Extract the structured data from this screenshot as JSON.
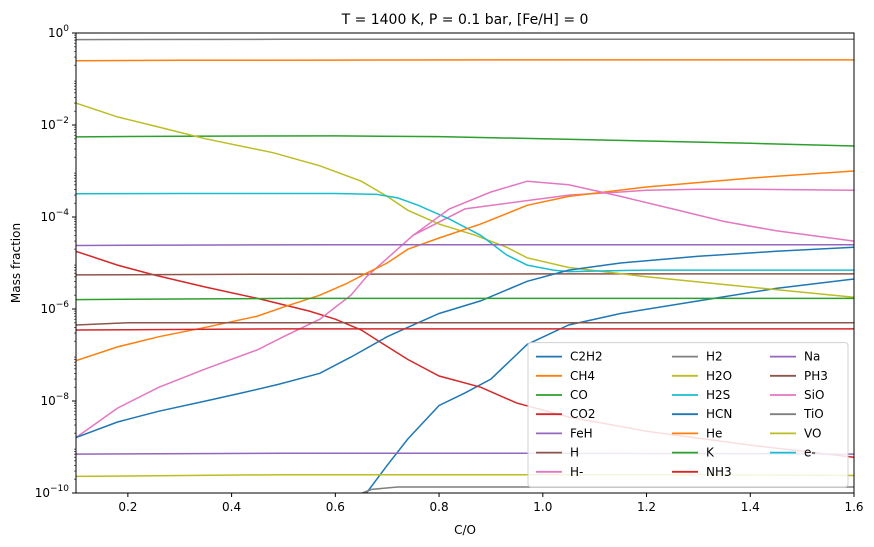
{
  "chart_data": {
    "type": "line",
    "title": "T = 1400 K, P = 0.1 bar, [Fe/H] = 0",
    "xlabel": "C/O",
    "ylabel": "Mass fraction",
    "xlim": [
      0.1,
      1.6
    ],
    "ylim": [
      1e-10,
      1
    ],
    "yscale": "log",
    "grid": false,
    "legend_placement": "lower-right",
    "legend_columns": 3,
    "x_ticks": [
      {
        "value": 0.2,
        "label": "0.2"
      },
      {
        "value": 0.4,
        "label": "0.4"
      },
      {
        "value": 0.6,
        "label": "0.6"
      },
      {
        "value": 0.8,
        "label": "0.8"
      },
      {
        "value": 1.0,
        "label": "1.0"
      },
      {
        "value": 1.2,
        "label": "1.2"
      },
      {
        "value": 1.4,
        "label": "1.4"
      },
      {
        "value": 1.6,
        "label": "1.6"
      }
    ],
    "y_ticks": [
      {
        "value": 1e-10,
        "base": "10",
        "exp": "−10"
      },
      {
        "value": 1e-08,
        "base": "10",
        "exp": "−8"
      },
      {
        "value": 1e-06,
        "base": "10",
        "exp": "−6"
      },
      {
        "value": 0.0001,
        "base": "10",
        "exp": "−4"
      },
      {
        "value": 0.01,
        "base": "10",
        "exp": "−2"
      },
      {
        "value": 1,
        "base": "10",
        "exp": "0"
      }
    ],
    "series": [
      {
        "name": "C2H2",
        "color": "#1f77b4",
        "points": [
          [
            0.6,
            6e-11
          ],
          [
            0.66,
            1e-10
          ],
          [
            0.7,
            4e-10
          ],
          [
            0.74,
            1.5e-09
          ],
          [
            0.8,
            8e-09
          ],
          [
            0.85,
            1.5e-08
          ],
          [
            0.9,
            3e-08
          ],
          [
            0.97,
            1.7e-07
          ],
          [
            1.05,
            4.5e-07
          ],
          [
            1.15,
            8e-07
          ],
          [
            1.3,
            1.5e-06
          ],
          [
            1.45,
            2.8e-06
          ],
          [
            1.6,
            4.5e-06
          ]
        ]
      },
      {
        "name": "CH4",
        "color": "#ff7f0e",
        "points": [
          [
            0.1,
            0.25
          ],
          [
            0.3,
            0.255
          ],
          [
            0.6,
            0.258
          ],
          [
            0.9,
            0.26
          ],
          [
            1.2,
            0.26
          ],
          [
            1.6,
            0.26
          ]
        ]
      },
      {
        "name": "CO",
        "color": "#2ca02c",
        "points": [
          [
            0.1,
            0.0055
          ],
          [
            0.3,
            0.0057
          ],
          [
            0.6,
            0.0058
          ],
          [
            0.8,
            0.0056
          ],
          [
            1.0,
            0.005
          ],
          [
            1.2,
            0.0045
          ],
          [
            1.4,
            0.004
          ],
          [
            1.6,
            0.0035
          ]
        ]
      },
      {
        "name": "CO2",
        "color": "#d62728",
        "points": [
          [
            0.1,
            1.8e-05
          ],
          [
            0.18,
            9e-06
          ],
          [
            0.25,
            5.5e-06
          ],
          [
            0.35,
            3e-06
          ],
          [
            0.45,
            1.7e-06
          ],
          [
            0.55,
            9e-07
          ],
          [
            0.6,
            6e-07
          ],
          [
            0.65,
            3.5e-07
          ],
          [
            0.69,
            1.8e-07
          ],
          [
            0.74,
            8e-08
          ],
          [
            0.8,
            3.5e-08
          ],
          [
            0.88,
            2e-08
          ],
          [
            0.95,
            9e-09
          ],
          [
            1.05,
            4.5e-09
          ],
          [
            1.2,
            2.2e-09
          ],
          [
            1.4,
            1.1e-09
          ],
          [
            1.6,
            6e-10
          ]
        ]
      },
      {
        "name": "FeH",
        "color": "#9467bd",
        "points": [
          [
            0.1,
            7e-10
          ],
          [
            0.5,
            7.3e-10
          ],
          [
            1.0,
            7.3e-10
          ],
          [
            1.3,
            7.2e-10
          ],
          [
            1.6,
            7e-10
          ]
        ]
      },
      {
        "name": "H",
        "color": "#8c564b",
        "points": [
          [
            0.1,
            5.5e-06
          ],
          [
            0.5,
            5.7e-06
          ],
          [
            1.0,
            5.8e-06
          ],
          [
            1.6,
            5.8e-06
          ]
        ]
      },
      {
        "name": "H-",
        "color": "#e377c2",
        "points": [
          [
            0.1,
            1.6e-09
          ],
          [
            0.18,
            7e-09
          ],
          [
            0.26,
            2e-08
          ],
          [
            0.35,
            5e-08
          ],
          [
            0.45,
            1.3e-07
          ],
          [
            0.5,
            2.5e-07
          ],
          [
            0.57,
            6e-07
          ],
          [
            0.63,
            2e-06
          ],
          [
            0.66,
            5e-06
          ],
          [
            0.75,
            4e-05
          ],
          [
            0.85,
            0.00015
          ],
          [
            1.05,
            0.0003
          ],
          [
            1.15,
            0.00035
          ],
          [
            1.2,
            0.00038
          ],
          [
            1.3,
            0.0004
          ],
          [
            1.4,
            0.0004
          ],
          [
            1.5,
            0.00039
          ],
          [
            1.6,
            0.00038
          ]
        ]
      },
      {
        "name": "H2",
        "color": "#7f7f7f",
        "points": [
          [
            0.1,
            0.72
          ],
          [
            0.5,
            0.73
          ],
          [
            1.0,
            0.73
          ],
          [
            1.6,
            0.73
          ]
        ]
      },
      {
        "name": "H2O",
        "color": "#bcbd22",
        "points": [
          [
            0.1,
            0.03
          ],
          [
            0.18,
            0.015
          ],
          [
            0.26,
            0.009
          ],
          [
            0.35,
            0.005
          ],
          [
            0.48,
            0.0025
          ],
          [
            0.57,
            0.0013
          ],
          [
            0.65,
            0.0006
          ],
          [
            0.7,
            0.00028
          ],
          [
            0.74,
            0.00014
          ],
          [
            0.8,
            7e-05
          ],
          [
            0.87,
            4e-05
          ],
          [
            0.93,
            2.2e-05
          ],
          [
            0.97,
            1.3e-05
          ],
          [
            1.05,
            8e-06
          ],
          [
            1.2,
            5e-06
          ],
          [
            1.4,
            3e-06
          ],
          [
            1.6,
            1.8e-06
          ]
        ]
      },
      {
        "name": "H2S",
        "color": "#17becf",
        "points": [
          [
            0.1,
            0.00032
          ],
          [
            0.3,
            0.000325
          ],
          [
            0.6,
            0.000325
          ],
          [
            0.68,
            0.00031
          ],
          [
            0.72,
            0.00026
          ],
          [
            0.76,
            0.00018
          ],
          [
            0.82,
            9e-05
          ],
          [
            0.88,
            4e-05
          ],
          [
            0.93,
            1.5e-05
          ],
          [
            0.97,
            9e-06
          ],
          [
            1.02,
            7e-06
          ],
          [
            1.05,
            6.5e-06
          ],
          [
            1.2,
            7e-06
          ],
          [
            1.4,
            7e-06
          ],
          [
            1.6,
            7e-06
          ]
        ]
      },
      {
        "name": "HCN",
        "color": "#1f77b4",
        "points": [
          [
            0.1,
            1.6e-09
          ],
          [
            0.18,
            3.5e-09
          ],
          [
            0.26,
            6e-09
          ],
          [
            0.35,
            1e-08
          ],
          [
            0.42,
            1.5e-08
          ],
          [
            0.49,
            2.3e-08
          ],
          [
            0.57,
            4e-08
          ],
          [
            0.63,
            9e-08
          ],
          [
            0.7,
            2.5e-07
          ],
          [
            0.74,
            4e-07
          ],
          [
            0.8,
            8e-07
          ],
          [
            0.88,
            1.5e-06
          ],
          [
            0.97,
            4e-06
          ],
          [
            1.05,
            7e-06
          ],
          [
            1.15,
            1e-05
          ],
          [
            1.3,
            1.4e-05
          ],
          [
            1.45,
            1.8e-05
          ],
          [
            1.6,
            2.2e-05
          ]
        ]
      },
      {
        "name": "He",
        "color": "#ff7f0e",
        "points": [
          [
            0.1,
            7.5e-08
          ],
          [
            0.18,
            1.5e-07
          ],
          [
            0.26,
            2.5e-07
          ],
          [
            0.35,
            4e-07
          ],
          [
            0.45,
            7e-07
          ],
          [
            0.5,
            1.1e-06
          ],
          [
            0.57,
            2e-06
          ],
          [
            0.62,
            3.5e-06
          ],
          [
            0.66,
            6e-06
          ],
          [
            0.7,
            1e-05
          ],
          [
            0.74,
            2e-05
          ],
          [
            0.8,
            3.5e-05
          ],
          [
            0.88,
            7e-05
          ],
          [
            0.97,
            0.00018
          ],
          [
            1.05,
            0.00028
          ],
          [
            1.2,
            0.00045
          ],
          [
            1.4,
            0.0007
          ],
          [
            1.6,
            0.001
          ]
        ]
      },
      {
        "name": "K",
        "color": "#2ca02c",
        "points": [
          [
            0.1,
            1.6e-06
          ],
          [
            0.5,
            1.7e-06
          ],
          [
            1.0,
            1.7e-06
          ],
          [
            1.3,
            1.7e-06
          ],
          [
            1.6,
            1.7e-06
          ]
        ]
      },
      {
        "name": "NH3",
        "color": "#d62728",
        "points": [
          [
            0.1,
            3.5e-07
          ],
          [
            0.5,
            3.7e-07
          ],
          [
            1.0,
            3.7e-07
          ],
          [
            1.6,
            3.7e-07
          ]
        ]
      },
      {
        "name": "Na",
        "color": "#9467bd",
        "points": [
          [
            0.1,
            2.4e-05
          ],
          [
            0.3,
            2.45e-05
          ],
          [
            0.6,
            2.5e-05
          ],
          [
            1.0,
            2.5e-05
          ],
          [
            1.6,
            2.5e-05
          ]
        ]
      },
      {
        "name": "PH3",
        "color": "#8c564b",
        "points": [
          [
            0.1,
            4.5e-07
          ],
          [
            0.2,
            5e-07
          ],
          [
            0.5,
            5e-07
          ],
          [
            1.0,
            5e-07
          ],
          [
            1.6,
            5e-07
          ]
        ]
      },
      {
        "name": "SiO",
        "color": "#e377c2",
        "points": [
          [
            0.75,
            4e-05
          ],
          [
            0.82,
            0.00015
          ],
          [
            0.9,
            0.00035
          ],
          [
            0.97,
            0.0006
          ],
          [
            1.05,
            0.0005
          ],
          [
            1.15,
            0.00028
          ],
          [
            1.25,
            0.00015
          ],
          [
            1.35,
            8e-05
          ],
          [
            1.45,
            5e-05
          ],
          [
            1.6,
            3e-05
          ]
        ]
      },
      {
        "name": "TiO",
        "color": "#7f7f7f",
        "points": [
          [
            0.6,
            6e-11
          ],
          [
            0.67,
            1.2e-10
          ],
          [
            0.72,
            1.35e-10
          ],
          [
            1.0,
            1.35e-10
          ],
          [
            1.6,
            1.35e-10
          ]
        ]
      },
      {
        "name": "VO",
        "color": "#bcbd22",
        "points": [
          [
            0.1,
            2.3e-10
          ],
          [
            0.5,
            2.5e-10
          ],
          [
            1.0,
            2.5e-10
          ],
          [
            1.3,
            2.5e-10
          ],
          [
            1.6,
            2.4e-10
          ]
        ]
      },
      {
        "name": "e-",
        "color": "#17becf",
        "points": []
      }
    ]
  }
}
